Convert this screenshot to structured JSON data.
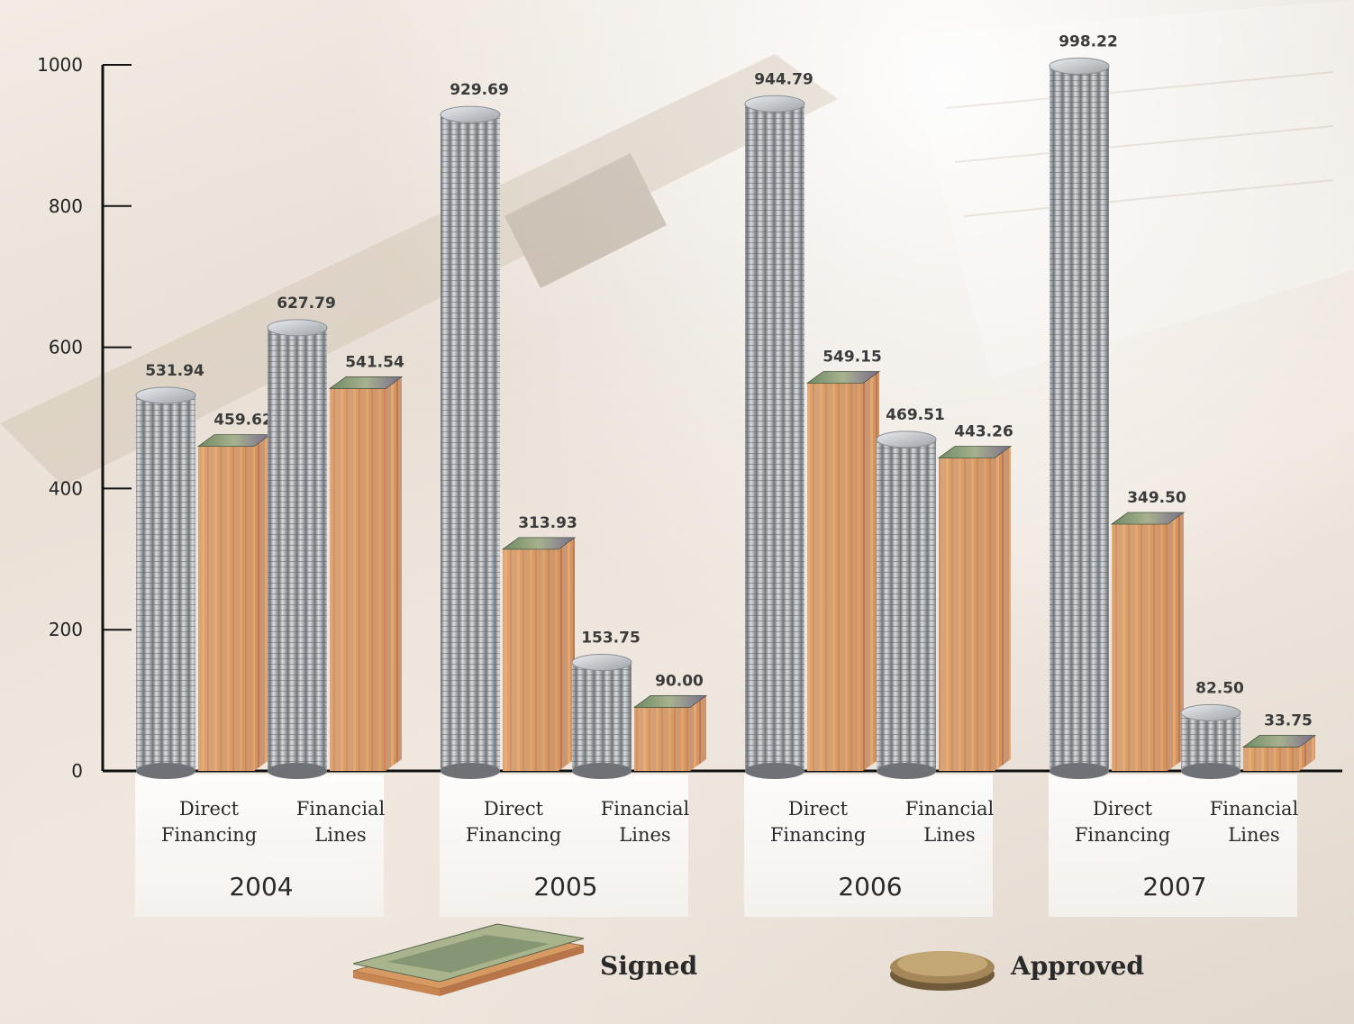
{
  "chart_data": {
    "type": "bar",
    "title": "",
    "xlabel": "",
    "ylabel": "",
    "ylim": [
      0,
      1000
    ],
    "yticks": [
      0,
      200,
      400,
      600,
      800,
      1000
    ],
    "groups": [
      {
        "label": "2004",
        "categories": [
          {
            "label_lines": [
              "Direct",
              "Financing"
            ],
            "approved": 531.94,
            "signed": 459.62,
            "approved_label": "531.94",
            "signed_label": "459.62"
          },
          {
            "label_lines": [
              "Financial",
              "Lines"
            ],
            "approved": 627.79,
            "signed": 541.54,
            "approved_label": "627.79",
            "signed_label": "541.54"
          }
        ]
      },
      {
        "label": "2005",
        "categories": [
          {
            "label_lines": [
              "Direct",
              "Financing"
            ],
            "approved": 929.69,
            "signed": 313.93,
            "approved_label": "929.69",
            "signed_label": "313.93"
          },
          {
            "label_lines": [
              "Financial",
              "Lines"
            ],
            "approved": 153.75,
            "signed": 90.0,
            "approved_label": "153.75",
            "signed_label": "90.00"
          }
        ]
      },
      {
        "label": "2006",
        "categories": [
          {
            "label_lines": [
              "Direct",
              "Financing"
            ],
            "approved": 944.79,
            "signed": 549.15,
            "approved_label": "944.79",
            "signed_label": "549.15"
          },
          {
            "label_lines": [
              "Financial",
              "Lines"
            ],
            "approved": 469.51,
            "signed": 443.26,
            "approved_label": "469.51",
            "signed_label": "443.26"
          }
        ]
      },
      {
        "label": "2007",
        "categories": [
          {
            "label_lines": [
              "Direct",
              "Financing"
            ],
            "approved": 998.22,
            "signed": 349.5,
            "approved_label": "998.22",
            "signed_label": "349.50"
          },
          {
            "label_lines": [
              "Financial",
              "Lines"
            ],
            "approved": 82.5,
            "signed": 33.75,
            "approved_label": "82.50",
            "signed_label": "33.75"
          }
        ]
      }
    ],
    "series": [
      {
        "name": "Signed",
        "icon": "banknote-stack-icon",
        "color": "#c98a5a"
      },
      {
        "name": "Approved",
        "icon": "coin-stack-icon",
        "color": "#b9bcc0"
      }
    ],
    "legend_position": "bottom",
    "grid": false
  }
}
